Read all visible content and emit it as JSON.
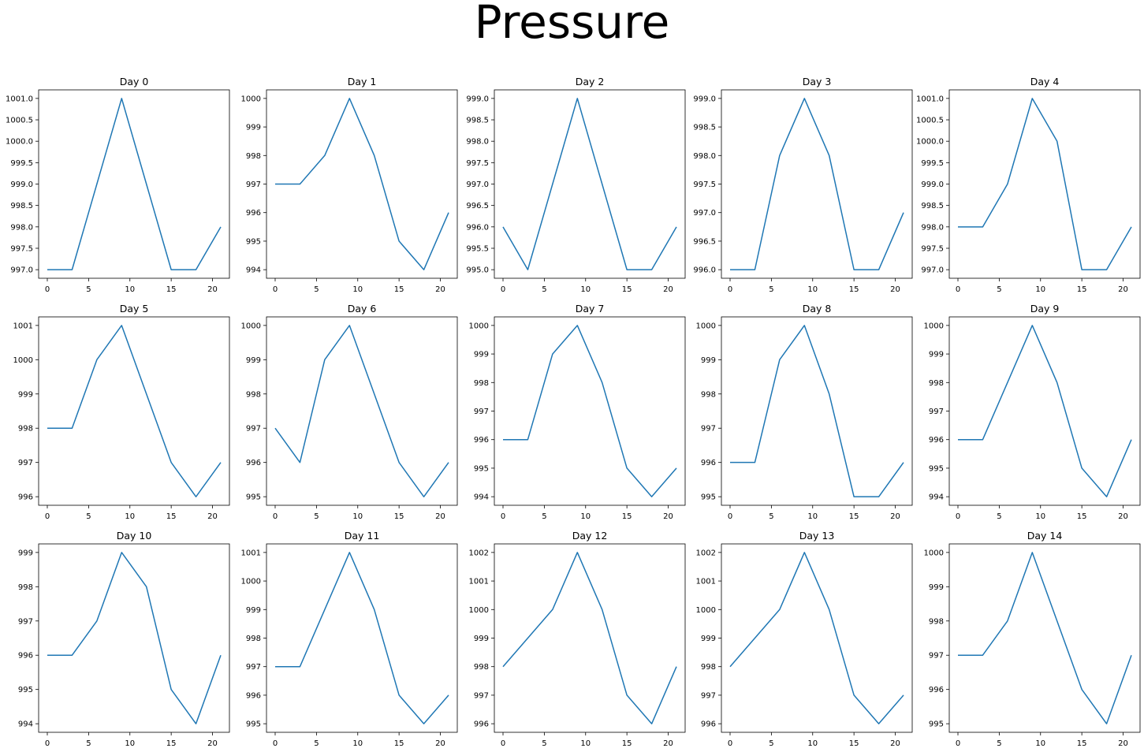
{
  "figure": {
    "title": "Pressure",
    "line_color": "#1f77b4"
  },
  "chart_data": [
    {
      "type": "line",
      "title": "Day 0",
      "x": [
        0,
        3,
        6,
        9,
        12,
        15,
        18,
        21
      ],
      "y": [
        997,
        997,
        999,
        1001,
        999,
        997,
        997,
        998
      ],
      "xticks": [
        0,
        5,
        10,
        15,
        20
      ],
      "yticks": [
        997.0,
        997.5,
        998.0,
        998.5,
        999.0,
        999.5,
        1000.0,
        1000.5,
        1001.0
      ],
      "ytick_decimals": 1,
      "ylim": [
        996.8,
        1001.2
      ]
    },
    {
      "type": "line",
      "title": "Day 1",
      "x": [
        0,
        3,
        6,
        9,
        12,
        15,
        18,
        21
      ],
      "y": [
        997,
        997,
        998,
        1000,
        998,
        995,
        994,
        996
      ],
      "xticks": [
        0,
        5,
        10,
        15,
        20
      ],
      "yticks": [
        994,
        995,
        996,
        997,
        998,
        999,
        1000
      ],
      "ytick_decimals": 0,
      "ylim": [
        993.7,
        1000.3
      ]
    },
    {
      "type": "line",
      "title": "Day 2",
      "x": [
        0,
        3,
        6,
        9,
        12,
        15,
        18,
        21
      ],
      "y": [
        996,
        995,
        997,
        999,
        997,
        995,
        995,
        996
      ],
      "xticks": [
        0,
        5,
        10,
        15,
        20
      ],
      "yticks": [
        995.0,
        995.5,
        996.0,
        996.5,
        997.0,
        997.5,
        998.0,
        998.5,
        999.0
      ],
      "ytick_decimals": 1,
      "ylim": [
        994.8,
        999.2
      ]
    },
    {
      "type": "line",
      "title": "Day 3",
      "x": [
        0,
        3,
        6,
        9,
        12,
        15,
        18,
        21
      ],
      "y": [
        996,
        996,
        998,
        999,
        998,
        996,
        996,
        997
      ],
      "xticks": [
        0,
        5,
        10,
        15,
        20
      ],
      "yticks": [
        996.0,
        996.5,
        997.0,
        997.5,
        998.0,
        998.5,
        999.0
      ],
      "ytick_decimals": 1,
      "ylim": [
        995.85,
        999.15
      ]
    },
    {
      "type": "line",
      "title": "Day 4",
      "x": [
        0,
        3,
        6,
        9,
        12,
        15,
        18,
        21
      ],
      "y": [
        998,
        998,
        999,
        1001,
        1000,
        997,
        997,
        998
      ],
      "xticks": [
        0,
        5,
        10,
        15,
        20
      ],
      "yticks": [
        997.0,
        997.5,
        998.0,
        998.5,
        999.0,
        999.5,
        1000.0,
        1000.5,
        1001.0
      ],
      "ytick_decimals": 1,
      "ylim": [
        996.8,
        1001.2
      ]
    },
    {
      "type": "line",
      "title": "Day 5",
      "x": [
        0,
        3,
        6,
        9,
        12,
        15,
        18,
        21
      ],
      "y": [
        998,
        998,
        1000,
        1001,
        999,
        997,
        996,
        997
      ],
      "xticks": [
        0,
        5,
        10,
        15,
        20
      ],
      "yticks": [
        996,
        997,
        998,
        999,
        1000,
        1001
      ],
      "ytick_decimals": 0,
      "ylim": [
        995.75,
        1001.25
      ]
    },
    {
      "type": "line",
      "title": "Day 6",
      "x": [
        0,
        3,
        6,
        9,
        12,
        15,
        18,
        21
      ],
      "y": [
        997,
        996,
        999,
        1000,
        998,
        996,
        995,
        996
      ],
      "xticks": [
        0,
        5,
        10,
        15,
        20
      ],
      "yticks": [
        995,
        996,
        997,
        998,
        999,
        1000
      ],
      "ytick_decimals": 0,
      "ylim": [
        994.75,
        1000.25
      ]
    },
    {
      "type": "line",
      "title": "Day 7",
      "x": [
        0,
        3,
        6,
        9,
        12,
        15,
        18,
        21
      ],
      "y": [
        996,
        996,
        999,
        1000,
        998,
        995,
        994,
        995
      ],
      "xticks": [
        0,
        5,
        10,
        15,
        20
      ],
      "yticks": [
        994,
        995,
        996,
        997,
        998,
        999,
        1000
      ],
      "ytick_decimals": 0,
      "ylim": [
        993.7,
        1000.3
      ]
    },
    {
      "type": "line",
      "title": "Day 8",
      "x": [
        0,
        3,
        6,
        9,
        12,
        15,
        18,
        21
      ],
      "y": [
        996,
        996,
        999,
        1000,
        998,
        995,
        995,
        996
      ],
      "xticks": [
        0,
        5,
        10,
        15,
        20
      ],
      "yticks": [
        995,
        996,
        997,
        998,
        999,
        1000
      ],
      "ytick_decimals": 0,
      "ylim": [
        994.75,
        1000.25
      ]
    },
    {
      "type": "line",
      "title": "Day 9",
      "x": [
        0,
        3,
        6,
        9,
        12,
        15,
        18,
        21
      ],
      "y": [
        996,
        996,
        998,
        1000,
        998,
        995,
        994,
        996
      ],
      "xticks": [
        0,
        5,
        10,
        15,
        20
      ],
      "yticks": [
        994,
        995,
        996,
        997,
        998,
        999,
        1000
      ],
      "ytick_decimals": 0,
      "ylim": [
        993.7,
        1000.3
      ]
    },
    {
      "type": "line",
      "title": "Day 10",
      "x": [
        0,
        3,
        6,
        9,
        12,
        15,
        18,
        21
      ],
      "y": [
        996,
        996,
        997,
        999,
        998,
        995,
        994,
        996
      ],
      "xticks": [
        0,
        5,
        10,
        15,
        20
      ],
      "yticks": [
        994,
        995,
        996,
        997,
        998,
        999
      ],
      "ytick_decimals": 0,
      "ylim": [
        993.75,
        999.25
      ]
    },
    {
      "type": "line",
      "title": "Day 11",
      "x": [
        0,
        3,
        6,
        9,
        12,
        15,
        18,
        21
      ],
      "y": [
        997,
        997,
        999,
        1001,
        999,
        996,
        995,
        996
      ],
      "xticks": [
        0,
        5,
        10,
        15,
        20
      ],
      "yticks": [
        995,
        996,
        997,
        998,
        999,
        1000,
        1001
      ],
      "ytick_decimals": 0,
      "ylim": [
        994.7,
        1001.3
      ]
    },
    {
      "type": "line",
      "title": "Day 12",
      "x": [
        0,
        3,
        6,
        9,
        12,
        15,
        18,
        21
      ],
      "y": [
        998,
        999,
        1000,
        1002,
        1000,
        997,
        996,
        998
      ],
      "xticks": [
        0,
        5,
        10,
        15,
        20
      ],
      "yticks": [
        996,
        997,
        998,
        999,
        1000,
        1001,
        1002
      ],
      "ytick_decimals": 0,
      "ylim": [
        995.7,
        1002.3
      ]
    },
    {
      "type": "line",
      "title": "Day 13",
      "x": [
        0,
        3,
        6,
        9,
        12,
        15,
        18,
        21
      ],
      "y": [
        998,
        999,
        1000,
        1002,
        1000,
        997,
        996,
        997
      ],
      "xticks": [
        0,
        5,
        10,
        15,
        20
      ],
      "yticks": [
        996,
        997,
        998,
        999,
        1000,
        1001,
        1002
      ],
      "ytick_decimals": 0,
      "ylim": [
        995.7,
        1002.3
      ]
    },
    {
      "type": "line",
      "title": "Day 14",
      "x": [
        0,
        3,
        6,
        9,
        12,
        15,
        18,
        21
      ],
      "y": [
        997,
        997,
        998,
        1000,
        998,
        996,
        995,
        997
      ],
      "xticks": [
        0,
        5,
        10,
        15,
        20
      ],
      "yticks": [
        995,
        996,
        997,
        998,
        999,
        1000
      ],
      "ytick_decimals": 0,
      "ylim": [
        994.75,
        1000.25
      ]
    }
  ]
}
